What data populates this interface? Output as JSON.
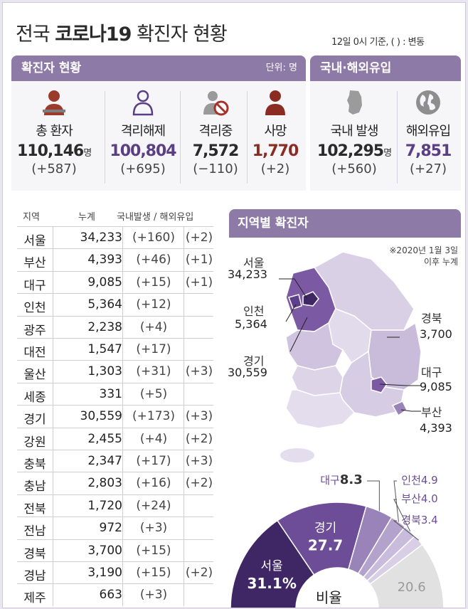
{
  "title": {
    "prefix": "전국 ",
    "bold": "코로나19",
    "suffix": " 확진자 현황"
  },
  "note": "12일 0시 기준, ( ) : 변동",
  "section_confirmed": {
    "title": "확진자 현황",
    "unit": "단위: 명"
  },
  "section_origin": {
    "title": "국내·해외유입"
  },
  "stats": [
    {
      "label": "총 환자",
      "value": "110,146",
      "suffix": "명",
      "change": "(+587)",
      "color": "#2a2a2a"
    },
    {
      "label": "격리해제",
      "value": "100,804",
      "suffix": "",
      "change": "(+695)",
      "color": "#5b3f86"
    },
    {
      "label": "격리중",
      "value": "7,572",
      "suffix": "",
      "change": "(−110)",
      "color": "#2a2a2a"
    },
    {
      "label": "사망",
      "value": "1,770",
      "suffix": "",
      "change": "(+2)",
      "color": "#8b2c22"
    }
  ],
  "origin": [
    {
      "label": "국내 발생",
      "value": "102,295",
      "suffix": "명",
      "change": "(+560)",
      "color": "#2a2a2a"
    },
    {
      "label": "해외유입",
      "value": "7,851",
      "suffix": "",
      "change": "(+27)",
      "color": "#5b3f86"
    }
  ],
  "table": {
    "headers": {
      "region": "지역",
      "cum": "누계",
      "split": "국내발생 / 해외유입"
    },
    "rows": [
      {
        "region": "서울",
        "cum": "34,233",
        "dom": "(+160)",
        "ovs": "(+2)"
      },
      {
        "region": "부산",
        "cum": "4,393",
        "dom": "(+46)",
        "ovs": "(+1)"
      },
      {
        "region": "대구",
        "cum": "9,085",
        "dom": "(+15)",
        "ovs": "(+1)"
      },
      {
        "region": "인천",
        "cum": "5,364",
        "dom": "(+12)",
        "ovs": ""
      },
      {
        "region": "광주",
        "cum": "2,238",
        "dom": "(+4)",
        "ovs": ""
      },
      {
        "region": "대전",
        "cum": "1,547",
        "dom": "(+17)",
        "ovs": ""
      },
      {
        "region": "울산",
        "cum": "1,303",
        "dom": "(+31)",
        "ovs": "(+3)"
      },
      {
        "region": "세종",
        "cum": "331",
        "dom": "(+5)",
        "ovs": ""
      },
      {
        "region": "경기",
        "cum": "30,559",
        "dom": "(+173)",
        "ovs": "(+3)"
      },
      {
        "region": "강원",
        "cum": "2,455",
        "dom": "(+4)",
        "ovs": "(+2)"
      },
      {
        "region": "충북",
        "cum": "2,347",
        "dom": "(+17)",
        "ovs": "(+3)"
      },
      {
        "region": "충남",
        "cum": "2,803",
        "dom": "(+16)",
        "ovs": "(+2)"
      },
      {
        "region": "전북",
        "cum": "1,720",
        "dom": "(+24)",
        "ovs": ""
      },
      {
        "region": "전남",
        "cum": "972",
        "dom": "(+3)",
        "ovs": ""
      },
      {
        "region": "경북",
        "cum": "3,700",
        "dom": "(+15)",
        "ovs": ""
      },
      {
        "region": "경남",
        "cum": "3,190",
        "dom": "(+15)",
        "ovs": "(+2)"
      },
      {
        "region": "제주",
        "cum": "663",
        "dom": "(+3)",
        "ovs": ""
      }
    ]
  },
  "map": {
    "title": "지역별 확진자",
    "note_line1": "※2020년 1월 3일",
    "note_line2": "이후 누계",
    "labels": [
      {
        "name": "서울",
        "value": "34,233"
      },
      {
        "name": "인천",
        "value": "5,364"
      },
      {
        "name": "경기",
        "value": "30,559"
      },
      {
        "name": "경북",
        "value": "3,700"
      },
      {
        "name": "대구",
        "value": "9,085"
      },
      {
        "name": "부산",
        "value": "4,393"
      }
    ]
  },
  "ratio": {
    "center_label": "비율",
    "slices": [
      {
        "name": "서울",
        "value": 31.1,
        "text": "31.1%",
        "color": "#3f2766"
      },
      {
        "name": "경기",
        "value": 27.7,
        "text": "27.7",
        "color": "#6d4c98"
      },
      {
        "name": "대구",
        "value": 8.3,
        "text": "8.3",
        "color": "#9a83b9"
      },
      {
        "name": "인천",
        "value": 4.9,
        "text": "4.9",
        "color": "#b3a2cc"
      },
      {
        "name": "부산",
        "value": 4.0,
        "text": "4.0",
        "color": "#c8bbdb"
      },
      {
        "name": "경북",
        "value": 3.4,
        "text": "3.4",
        "color": "#d8cfe6"
      },
      {
        "name": "",
        "value": 20.6,
        "text": "20.6",
        "color": "#e1e1e1"
      }
    ]
  }
}
